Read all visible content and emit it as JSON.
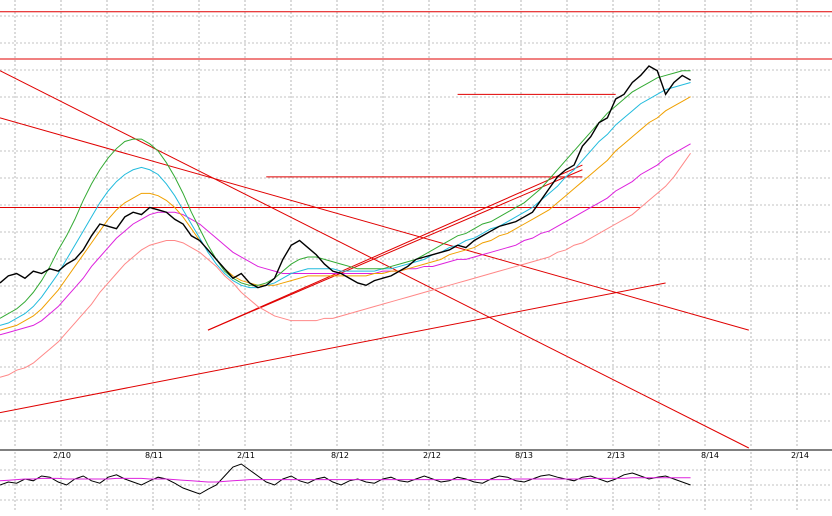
{
  "chart_data": {
    "type": "line",
    "grid": true,
    "x_ticks": [
      "2/10",
      "8/11",
      "2/11",
      "8/12",
      "2/12",
      "8/13",
      "2/13",
      "8/14",
      "2/14"
    ],
    "price_range": [
      0,
      100
    ],
    "oscillator_range": [
      0,
      100
    ],
    "colors": {
      "price": "#000000",
      "ma_green": "#33aa33",
      "ma_cyan": "#22bbdd",
      "ma_orange": "#f0a000",
      "ma_magenta": "#dd22dd",
      "ma_pink": "#ff8888",
      "trendline": "#e00000",
      "grid": "#888888"
    },
    "series": [
      {
        "key": "price",
        "values": [
          70,
          73,
          74,
          72,
          75,
          74,
          76,
          75,
          78,
          80,
          84,
          90,
          95,
          94,
          93,
          98,
          100,
          99,
          102,
          101,
          100,
          97,
          95,
          90,
          88,
          84,
          80,
          76,
          72,
          74,
          70,
          68,
          69,
          72,
          80,
          86,
          88,
          85,
          82,
          78,
          75,
          74,
          72,
          70,
          69,
          71,
          72,
          73,
          75,
          77,
          80,
          81,
          82,
          83,
          84,
          86,
          85,
          88,
          90,
          92,
          94,
          95,
          96,
          98,
          100,
          105,
          110,
          115,
          118,
          120,
          128,
          132,
          138,
          140,
          148,
          150,
          155,
          158,
          162,
          160,
          150,
          155,
          158,
          156
        ]
      },
      {
        "key": "ma_green",
        "values": [
          55,
          57,
          59,
          62,
          66,
          71,
          77,
          84,
          90,
          97,
          105,
          112,
          118,
          123,
          127,
          130,
          131,
          131,
          129,
          126,
          121,
          115,
          108,
          100,
          93,
          86,
          80,
          75,
          72,
          70,
          69,
          69,
          70,
          72,
          75,
          78,
          80,
          81,
          81,
          80,
          79,
          78,
          77,
          76,
          76,
          76,
          76,
          77,
          78,
          79,
          80,
          82,
          84,
          86,
          88,
          90,
          91,
          93,
          95,
          96,
          98,
          100,
          102,
          104,
          107,
          110,
          114,
          118,
          122,
          126,
          130,
          134,
          138,
          142,
          145,
          148,
          151,
          153,
          155,
          157,
          158,
          159,
          160,
          160
        ]
      },
      {
        "key": "ma_cyan",
        "values": [
          52,
          53,
          55,
          57,
          60,
          64,
          69,
          74,
          80,
          86,
          92,
          98,
          104,
          109,
          113,
          116,
          118,
          119,
          118,
          116,
          112,
          107,
          101,
          95,
          89,
          83,
          78,
          74,
          71,
          69,
          68,
          68,
          69,
          70,
          72,
          74,
          75,
          76,
          76,
          76,
          76,
          75,
          75,
          75,
          75,
          75,
          76,
          76,
          77,
          78,
          79,
          80,
          82,
          83,
          85,
          86,
          88,
          89,
          91,
          93,
          94,
          96,
          98,
          100,
          102,
          105,
          108,
          111,
          115,
          118,
          122,
          126,
          130,
          133,
          137,
          140,
          143,
          146,
          148,
          150,
          152,
          153,
          154,
          155
        ]
      },
      {
        "key": "ma_orange",
        "values": [
          50,
          51,
          52,
          54,
          56,
          59,
          63,
          67,
          72,
          77,
          82,
          87,
          92,
          97,
          101,
          104,
          106,
          108,
          108,
          107,
          105,
          102,
          98,
          93,
          88,
          84,
          80,
          76,
          73,
          71,
          70,
          69,
          69,
          69,
          70,
          71,
          72,
          73,
          73,
          73,
          73,
          73,
          73,
          73,
          73,
          74,
          74,
          75,
          75,
          76,
          77,
          78,
          79,
          80,
          82,
          83,
          84,
          85,
          87,
          88,
          90,
          91,
          93,
          95,
          97,
          99,
          101,
          104,
          107,
          110,
          113,
          116,
          119,
          122,
          126,
          129,
          132,
          135,
          138,
          140,
          143,
          145,
          147,
          149
        ]
      },
      {
        "key": "ma_magenta",
        "values": [
          48,
          49,
          50,
          51,
          52,
          54,
          57,
          60,
          64,
          68,
          72,
          77,
          81,
          85,
          89,
          92,
          95,
          97,
          99,
          100,
          100,
          100,
          99,
          97,
          95,
          92,
          89,
          86,
          83,
          81,
          79,
          77,
          76,
          75,
          74,
          74,
          74,
          74,
          74,
          74,
          74,
          74,
          74,
          74,
          74,
          74,
          75,
          75,
          75,
          76,
          76,
          77,
          77,
          78,
          79,
          80,
          80,
          81,
          82,
          83,
          84,
          85,
          86,
          88,
          89,
          91,
          92,
          94,
          96,
          98,
          100,
          102,
          104,
          106,
          109,
          111,
          113,
          116,
          118,
          120,
          123,
          125,
          127,
          129
        ]
      },
      {
        "key": "ma_pink",
        "values": [
          30,
          31,
          33,
          34,
          36,
          39,
          42,
          45,
          49,
          53,
          57,
          61,
          66,
          70,
          74,
          78,
          81,
          84,
          86,
          87,
          88,
          88,
          87,
          85,
          83,
          80,
          77,
          73,
          70,
          66,
          63,
          60,
          58,
          56,
          55,
          54,
          54,
          54,
          54,
          55,
          55,
          56,
          57,
          58,
          59,
          60,
          61,
          62,
          63,
          64,
          65,
          66,
          67,
          68,
          69,
          70,
          71,
          72,
          73,
          74,
          75,
          76,
          77,
          78,
          79,
          80,
          81,
          83,
          84,
          86,
          87,
          89,
          91,
          93,
          95,
          97,
          99,
          102,
          105,
          108,
          111,
          115,
          120,
          125
        ]
      }
    ],
    "oscillator": [
      {
        "key": "osc_black",
        "values": [
          45,
          50,
          48,
          55,
          52,
          60,
          58,
          50,
          45,
          55,
          60,
          52,
          48,
          58,
          62,
          55,
          50,
          45,
          52,
          58,
          55,
          48,
          40,
          35,
          30,
          38,
          45,
          60,
          75,
          80,
          70,
          60,
          50,
          45,
          55,
          60,
          52,
          48,
          55,
          58,
          50,
          45,
          52,
          55,
          50,
          48,
          55,
          58,
          52,
          50,
          55,
          60,
          55,
          50,
          52,
          58,
          55,
          50,
          48,
          55,
          60,
          58,
          52,
          50,
          55,
          60,
          62,
          58,
          55,
          52,
          58,
          60,
          55,
          50,
          55,
          62,
          65,
          60,
          55,
          58,
          60,
          55,
          50,
          45
        ]
      },
      {
        "key": "osc_magenta",
        "values": [
          52,
          53,
          54,
          55,
          55,
          56,
          56,
          56,
          55,
          55,
          55,
          55,
          55,
          55,
          56,
          56,
          56,
          56,
          55,
          55,
          55,
          54,
          53,
          52,
          51,
          50,
          50,
          51,
          52,
          53,
          54,
          54,
          54,
          54,
          54,
          54,
          54,
          54,
          54,
          54,
          54,
          54,
          54,
          54,
          54,
          54,
          54,
          54,
          54,
          54,
          54,
          54,
          54,
          54,
          54,
          54,
          54,
          54,
          54,
          54,
          54,
          54,
          55,
          55,
          55,
          55,
          55,
          55,
          55,
          55,
          55,
          56,
          56,
          56,
          56,
          56,
          57,
          57,
          57,
          57,
          57,
          57,
          57,
          57
        ]
      }
    ],
    "trendlines": [
      {
        "x1": 0,
        "y1": 160,
        "x2": 90,
        "y2": 0
      },
      {
        "x1": 0,
        "y1": 140,
        "x2": 90,
        "y2": 50
      },
      {
        "x1": 0,
        "y1": 15,
        "x2": 80,
        "y2": 70
      },
      {
        "x1": 25,
        "y1": 50,
        "x2": 70,
        "y2": 120
      },
      {
        "x1": 25,
        "y1": 50,
        "x2": 70,
        "y2": 118
      },
      {
        "x1": 32,
        "y1": 115,
        "x2": 70,
        "y2": 115
      },
      {
        "x1": 55,
        "y1": 150,
        "x2": 74,
        "y2": 150
      },
      {
        "x1": 0,
        "y1": 165,
        "x2": 100,
        "y2": 165
      },
      {
        "x1": 0,
        "y1": 102,
        "x2": 77,
        "y2": 102
      },
      {
        "x1": 0,
        "y1": 185,
        "x2": 100,
        "y2": 185
      }
    ]
  }
}
